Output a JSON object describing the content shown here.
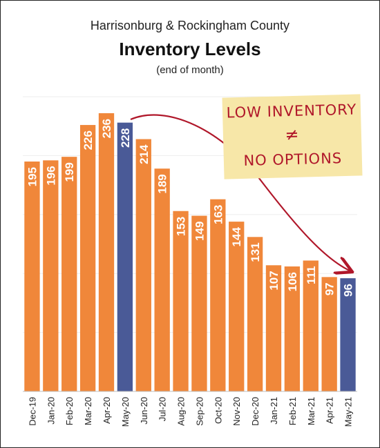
{
  "header": {
    "line1": "Harrisonburg & Rockingham County",
    "title": "Inventory Levels",
    "subtitle": "(end of month)"
  },
  "annotation": {
    "line1": "LOW INVENTORY",
    "symbol": "≠",
    "line2": "NO OPTIONS",
    "ink_color": "#b0172a",
    "highlight_color": "#f7e7a8"
  },
  "chart_data": {
    "type": "bar",
    "title": "Inventory Levels",
    "subtitle": "(end of month)",
    "categories": [
      "Dec-19",
      "Jan-20",
      "Feb-20",
      "Mar-20",
      "Apr-20",
      "May-20",
      "Jun-20",
      "Jul-20",
      "Aug-20",
      "Sep-20",
      "Oct-20",
      "Nov-20",
      "Dec-20",
      "Jan-21",
      "Feb-21",
      "Mar-21",
      "Apr-21",
      "May-21"
    ],
    "values": [
      195,
      196,
      199,
      226,
      236,
      228,
      214,
      189,
      153,
      149,
      163,
      144,
      131,
      107,
      106,
      111,
      97,
      96
    ],
    "highlight": [
      "May-20",
      "May-21"
    ],
    "colors": {
      "bar": "#f0873a",
      "highlight": "#4a5a97",
      "label": "#ffffff",
      "arrow": "#b0172a"
    },
    "ylim": [
      0,
      260
    ],
    "grid": true,
    "legend": "none",
    "xlabel": "",
    "ylabel": ""
  }
}
